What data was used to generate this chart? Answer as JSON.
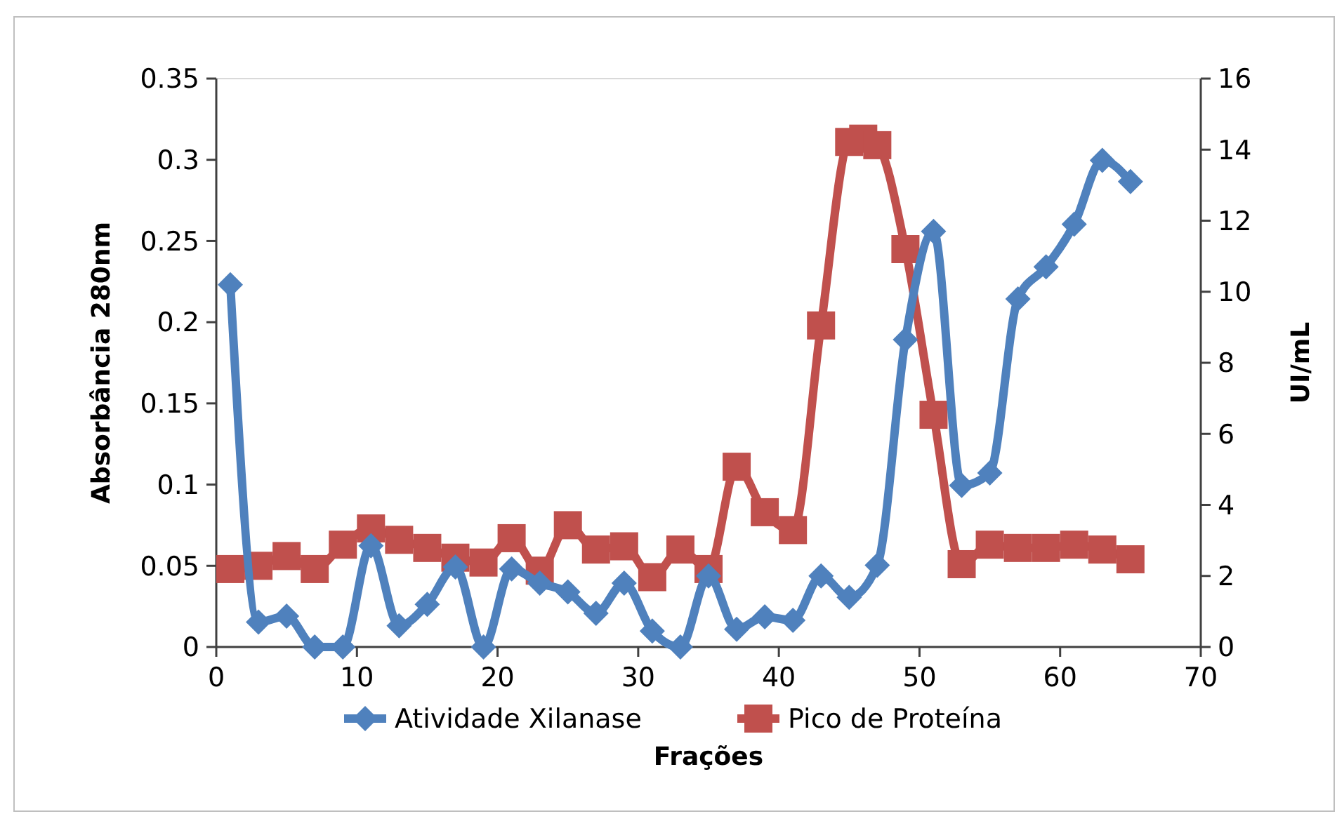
{
  "chart_data": {
    "type": "line",
    "xlabel": "Frações",
    "ylabel": "Absorbância 280nm",
    "y2label": "UI/mL",
    "x": [
      1,
      3,
      5,
      7,
      9,
      11,
      13,
      15,
      17,
      19,
      21,
      23,
      25,
      27,
      29,
      31,
      33,
      35,
      37,
      39,
      41,
      43,
      45,
      47,
      49,
      51,
      53,
      55,
      57,
      59,
      61,
      63,
      65
    ],
    "series": [
      {
        "name": "Atividade Xilanase",
        "color": "#4f81bd",
        "axis": "y2",
        "marker": "diamond",
        "values": [
          10.2,
          0.7,
          0.87,
          0,
          0,
          2.85,
          0.6,
          1.2,
          2.25,
          0,
          2.2,
          1.8,
          1.55,
          0.95,
          1.8,
          0.45,
          0,
          2,
          0.5,
          0.85,
          0.75,
          2,
          1.4,
          2.3,
          8.65,
          11.7,
          4.55,
          4.9,
          9.8,
          10.7,
          11.9,
          13.7,
          13.1
        ]
      },
      {
        "name": "Pico de Proteína",
        "color": "#c0504d",
        "axis": "y",
        "marker": "square",
        "x": [
          1,
          3,
          5,
          7,
          9,
          11,
          13,
          15,
          17,
          19,
          21,
          23,
          25,
          27,
          29,
          31,
          33,
          35,
          37,
          39,
          41,
          43,
          45,
          46,
          47,
          49,
          51,
          53,
          55,
          57,
          59,
          61,
          63,
          65
        ],
        "values": [
          0.048,
          0.05,
          0.056,
          0.048,
          0.063,
          0.073,
          0.066,
          0.061,
          0.055,
          0.052,
          0.067,
          0.047,
          0.075,
          0.06,
          0.062,
          0.043,
          0.06,
          0.048,
          0.111,
          0.083,
          0.072,
          0.198,
          0.311,
          0.313,
          0.309,
          0.245,
          0.143,
          0.051,
          0.063,
          0.061,
          0.061,
          0.063,
          0.06,
          0.054
        ]
      }
    ],
    "xlim": [
      0,
      70
    ],
    "xticks": [
      0,
      10,
      20,
      30,
      40,
      50,
      60,
      70
    ],
    "ylim": [
      0,
      0.35
    ],
    "yticks": [
      0,
      0.05,
      0.1,
      0.15,
      0.2,
      0.25,
      0.3,
      0.35
    ],
    "y2lim": [
      0,
      16
    ],
    "y2ticks": [
      0,
      2,
      4,
      6,
      8,
      10,
      12,
      14,
      16
    ],
    "grid": false,
    "legend": "bottom",
    "line_style": "solid"
  }
}
